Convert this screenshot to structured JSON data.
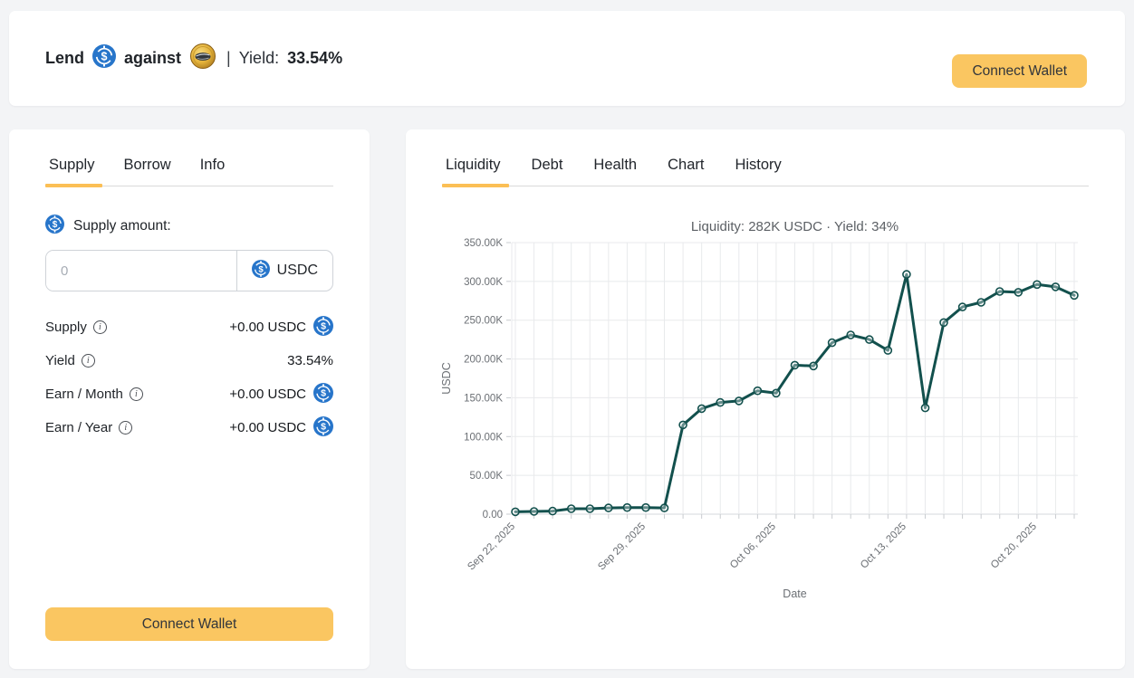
{
  "header": {
    "lend_label": "Lend",
    "against_label": "against",
    "divider": "|",
    "yield_label": "Yield:",
    "yield_value": "33.54%",
    "connect_wallet_label": "Connect Wallet"
  },
  "icons": {
    "info_glyph": "i",
    "usdc_symbol": "$"
  },
  "supply_panel": {
    "tabs": [
      {
        "label": "Supply",
        "active": true
      },
      {
        "label": "Borrow",
        "active": false
      },
      {
        "label": "Info",
        "active": false
      }
    ],
    "supply_amount_label": "Supply amount:",
    "amount_input": {
      "value": "",
      "placeholder": "0"
    },
    "currency_label": "USDC",
    "rows": [
      {
        "label": "Supply",
        "value": "+0.00 USDC"
      },
      {
        "label": "Yield",
        "value": "33.54%"
      },
      {
        "label": "Earn / Month",
        "value": "+0.00 USDC"
      },
      {
        "label": "Earn / Year",
        "value": "+0.00 USDC"
      }
    ],
    "connect_wallet_label": "Connect Wallet"
  },
  "chart_panel": {
    "tabs": [
      {
        "label": "Liquidity",
        "active": true
      },
      {
        "label": "Debt",
        "active": false
      },
      {
        "label": "Health",
        "active": false
      },
      {
        "label": "Chart",
        "active": false
      },
      {
        "label": "History",
        "active": false
      }
    ]
  },
  "chart_data": {
    "type": "line",
    "title": "Liquidity: 282K USDC · Yield: 34%",
    "xlabel": "Date",
    "ylabel": "USDC",
    "grid": true,
    "legend": "none",
    "line_color": "#12504d",
    "ylim": [
      0,
      350000
    ],
    "ytick_step": 50000,
    "ytick_labels": [
      "0.00",
      "50.00K",
      "100.00K",
      "150.00K",
      "200.00K",
      "250.00K",
      "300.00K",
      "350.00K"
    ],
    "xtick_indices": [
      0,
      7,
      14,
      21,
      28
    ],
    "xtick_labels": [
      "Sep 22, 2025",
      "Sep 29, 2025",
      "Oct 06, 2025",
      "Oct 13, 2025",
      "Oct 20, 2025"
    ],
    "x": [
      "2025-09-22",
      "2025-09-23",
      "2025-09-24",
      "2025-09-25",
      "2025-09-26",
      "2025-09-27",
      "2025-09-28",
      "2025-09-29",
      "2025-09-30",
      "2025-10-01",
      "2025-10-02",
      "2025-10-03",
      "2025-10-04",
      "2025-10-05",
      "2025-10-06",
      "2025-10-07",
      "2025-10-08",
      "2025-10-09",
      "2025-10-10",
      "2025-10-11",
      "2025-10-12",
      "2025-10-13",
      "2025-10-14",
      "2025-10-15",
      "2025-10-16",
      "2025-10-17",
      "2025-10-18",
      "2025-10-19",
      "2025-10-20",
      "2025-10-21",
      "2025-10-22"
    ],
    "values": [
      3000,
      3500,
      4000,
      7000,
      7000,
      8000,
      8500,
      8500,
      8000,
      115000,
      136000,
      144000,
      146000,
      159000,
      156000,
      192000,
      191000,
      221000,
      231000,
      225000,
      211000,
      309000,
      137000,
      247000,
      267000,
      273000,
      287000,
      286000,
      296000,
      293000,
      282000
    ]
  },
  "colors": {
    "accent_yellow": "#fac661",
    "tab_underline": "#fbbf55",
    "usdc_blue": "#2775CA",
    "chart_line": "#12504d",
    "page_bg": "#f3f4f6"
  }
}
